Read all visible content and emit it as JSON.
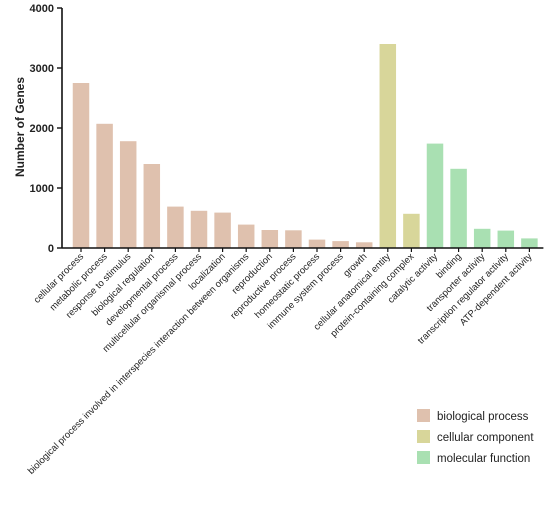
{
  "chart_data": {
    "type": "bar",
    "title": "",
    "xlabel": "",
    "ylabel": "Number of Genes",
    "ylim": [
      0,
      4000
    ],
    "yticks": [
      0,
      1000,
      2000,
      3000,
      4000
    ],
    "grid": false,
    "legend_position": "bottom-right",
    "groups": [
      {
        "name": "biological process",
        "color": "#dfc1ae"
      },
      {
        "name": "cellular component",
        "color": "#d8d69a"
      },
      {
        "name": "molecular function",
        "color": "#a9e0b2"
      }
    ],
    "categories": [
      {
        "label": "cellular process",
        "value": 2750,
        "group": 0
      },
      {
        "label": "metabolic process",
        "value": 2070,
        "group": 0
      },
      {
        "label": "response to stimulus",
        "value": 1780,
        "group": 0
      },
      {
        "label": "biological regulation",
        "value": 1400,
        "group": 0
      },
      {
        "label": "developmental process",
        "value": 690,
        "group": 0
      },
      {
        "label": "multicellular organismal process",
        "value": 620,
        "group": 0
      },
      {
        "label": "localization",
        "value": 590,
        "group": 0
      },
      {
        "label": "biological process involved in interspecies interaction between organisms",
        "value": 390,
        "group": 0
      },
      {
        "label": "reproduction",
        "value": 300,
        "group": 0
      },
      {
        "label": "reproductive process",
        "value": 295,
        "group": 0
      },
      {
        "label": "homeostatic process",
        "value": 140,
        "group": 0
      },
      {
        "label": "immune system process",
        "value": 115,
        "group": 0
      },
      {
        "label": "growth",
        "value": 95,
        "group": 0
      },
      {
        "label": "cellular anatomical entity",
        "value": 3400,
        "group": 1
      },
      {
        "label": "protein-containing complex",
        "value": 570,
        "group": 1
      },
      {
        "label": "catalytic activity",
        "value": 1740,
        "group": 2
      },
      {
        "label": "binding",
        "value": 1320,
        "group": 2
      },
      {
        "label": "transporter activity",
        "value": 320,
        "group": 2
      },
      {
        "label": "transcription regulator activity",
        "value": 290,
        "group": 2
      },
      {
        "label": "ATP-dependent activity",
        "value": 160,
        "group": 2
      }
    ]
  }
}
